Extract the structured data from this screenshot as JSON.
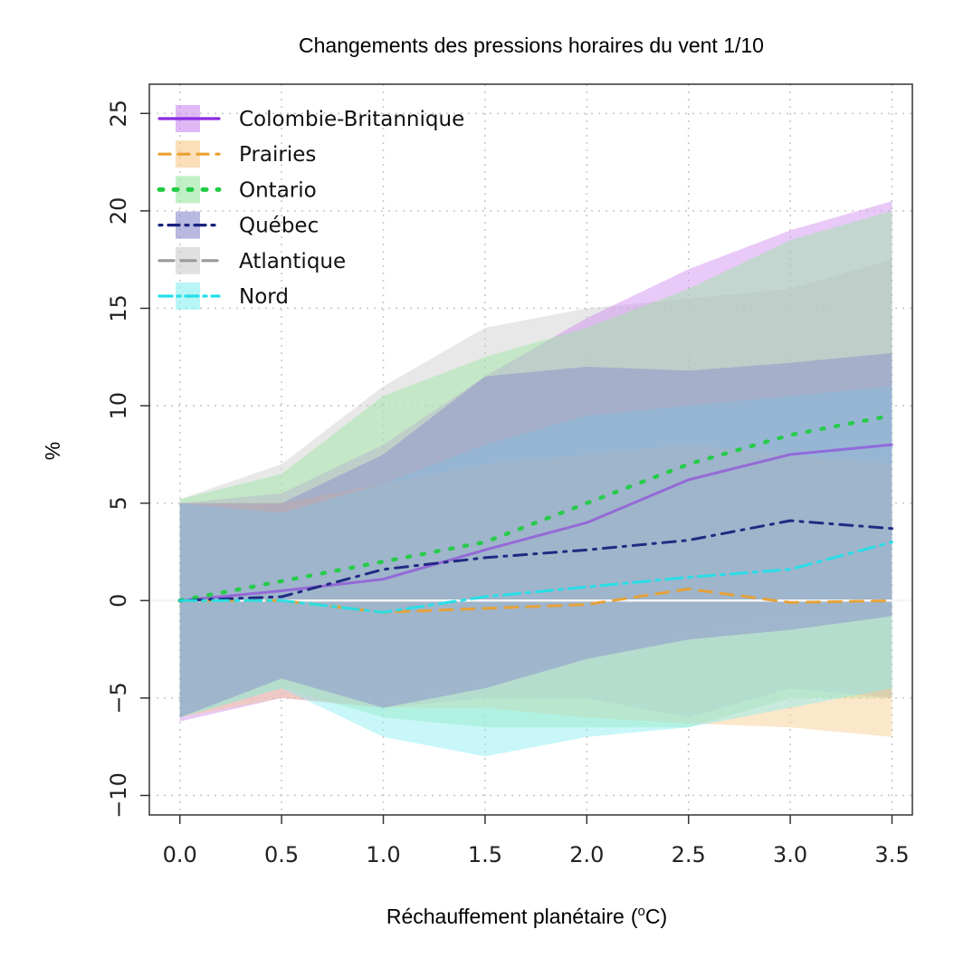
{
  "chart_data": {
    "type": "line",
    "title": "Changements des pressions horaires du vent 1/10",
    "xlabel": "Réchauffement planétaire",
    "xlabel_unit_prefix": "(",
    "xlabel_unit_sup": "o",
    "xlabel_unit_suffix": "C)",
    "ylabel": "%",
    "xlim": [
      -0.15,
      3.6
    ],
    "ylim": [
      -11,
      26.5
    ],
    "grid": true,
    "legend_position": "top-left",
    "x": [
      0.0,
      0.5,
      1.0,
      1.5,
      2.0,
      2.5,
      3.0,
      3.5
    ],
    "x_tick_labels": [
      "0.0",
      "0.5",
      "1.0",
      "1.5",
      "2.0",
      "2.5",
      "3.0",
      "3.5"
    ],
    "y_ticks": [
      -10,
      -5,
      0,
      5,
      10,
      15,
      20,
      25
    ],
    "y_tick_labels": [
      "−10",
      "−5",
      "0",
      "5",
      "10",
      "15",
      "20",
      "25"
    ],
    "zero_line": true,
    "series": [
      {
        "name": "Colombie-Britannique",
        "line_color": "#8a2be2",
        "band_color": "#cc88ee",
        "line_style": "solid",
        "values": [
          0.0,
          0.5,
          1.1,
          2.6,
          4.0,
          6.2,
          7.5,
          8.0
        ],
        "upper": [
          5.0,
          5.5,
          8.0,
          11.5,
          14.5,
          17.0,
          19.0,
          20.5
        ],
        "lower": [
          -6.2,
          -5.0,
          -5.5,
          -5.0,
          -5.0,
          -6.0,
          -4.5,
          -5.0
        ]
      },
      {
        "name": "Prairies",
        "line_color": "#e8a030",
        "band_color": "#f7c98a",
        "line_style": "dashed",
        "values": [
          0.0,
          0.0,
          -0.6,
          -0.4,
          -0.2,
          0.6,
          -0.1,
          0.0
        ],
        "upper": [
          5.0,
          5.0,
          6.0,
          7.0,
          7.5,
          8.0,
          7.5,
          7.0
        ],
        "lower": [
          -6.0,
          -5.0,
          -5.5,
          -5.5,
          -6.0,
          -6.3,
          -6.5,
          -7.0
        ]
      },
      {
        "name": "Ontario",
        "line_color": "#22cc44",
        "band_color": "#99e6a0",
        "line_style": "dotted",
        "values": [
          0.0,
          1.0,
          2.0,
          3.0,
          5.0,
          7.0,
          8.5,
          9.5
        ],
        "upper": [
          5.2,
          6.5,
          10.5,
          12.5,
          14.0,
          16.0,
          18.5,
          20.0
        ],
        "lower": [
          -6.0,
          -4.5,
          -6.0,
          -6.5,
          -6.5,
          -6.5,
          -5.0,
          -5.0
        ]
      },
      {
        "name": "Québec",
        "line_color": "#1a237e",
        "band_color": "#8888cc",
        "line_style": "dashdot",
        "values": [
          0.0,
          0.2,
          1.6,
          2.2,
          2.6,
          3.1,
          4.1,
          3.7
        ],
        "upper": [
          5.0,
          5.0,
          7.5,
          11.5,
          12.0,
          11.8,
          12.2,
          12.7
        ],
        "lower": [
          -6.0,
          -4.0,
          -5.5,
          -4.5,
          -3.0,
          -2.0,
          -1.5,
          -0.8
        ]
      },
      {
        "name": "Atlantique",
        "line_color": "#999999",
        "band_color": "#cccccc",
        "line_style": "longdash",
        "values": [
          0.0,
          0.3,
          0.9,
          1.8,
          2.5,
          3.0,
          3.5,
          4.0
        ],
        "upper": [
          5.2,
          7.0,
          11.0,
          14.0,
          15.0,
          15.5,
          16.0,
          17.5
        ],
        "lower": [
          -5.5,
          -4.0,
          -5.0,
          -4.0,
          -3.0,
          -1.5,
          -0.5,
          -0.5
        ]
      },
      {
        "name": "Nord",
        "line_color": "#22e0e8",
        "band_color": "#88eef2",
        "line_style": "longdashdot",
        "values": [
          0.0,
          0.0,
          -0.6,
          0.2,
          0.7,
          1.2,
          1.6,
          3.0
        ],
        "upper": [
          5.0,
          4.5,
          6.0,
          8.0,
          9.5,
          10.0,
          10.5,
          11.0
        ],
        "lower": [
          -6.0,
          -4.5,
          -7.0,
          -8.0,
          -7.0,
          -6.5,
          -5.5,
          -4.5
        ]
      }
    ]
  }
}
